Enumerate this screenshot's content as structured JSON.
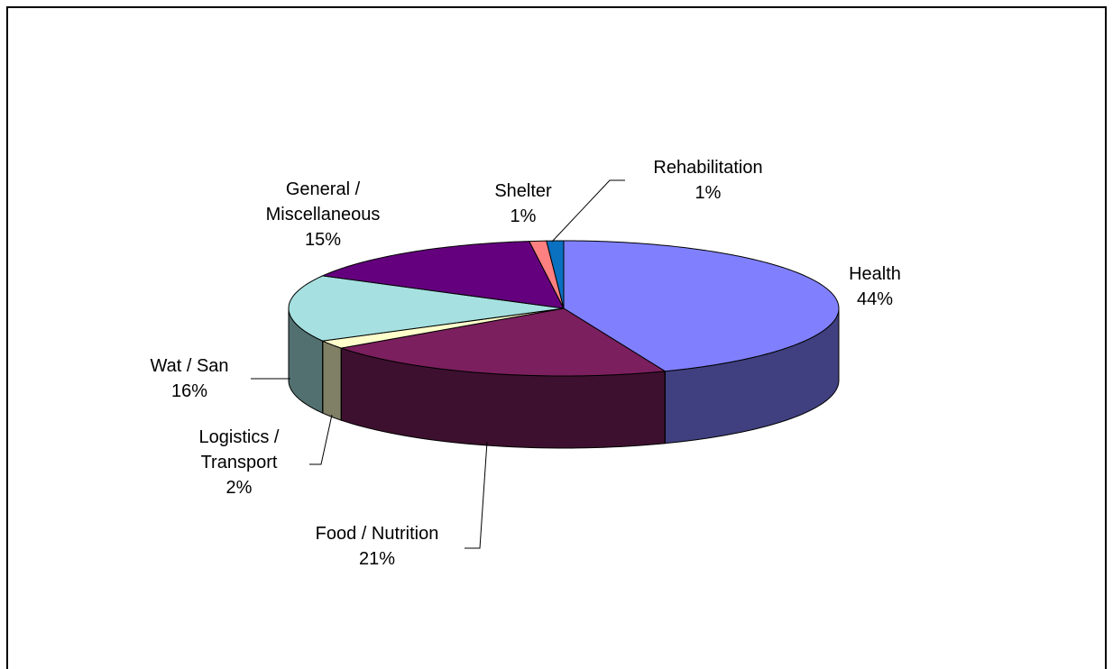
{
  "chart_data": {
    "type": "pie",
    "three_d": true,
    "categories": [
      "Health",
      "Food / Nutrition",
      "Logistics / Transport",
      "Wat / San",
      "General / Miscellaneous",
      "Shelter",
      "Rehabilitation"
    ],
    "values": [
      44,
      21,
      2,
      16,
      15,
      1,
      1
    ],
    "value_labels": [
      "44%",
      "21%",
      "2%",
      "16%",
      "15%",
      "1%",
      "1%"
    ],
    "colors": [
      "#8080FF",
      "#7B1F5E",
      "#FFFFCC",
      "#A6E0E0",
      "#64007E",
      "#FF8080",
      "#0A70C0"
    ]
  }
}
